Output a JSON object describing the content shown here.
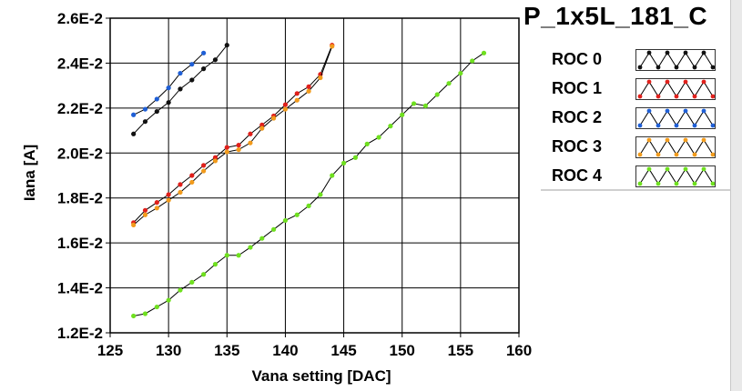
{
  "chart_data": {
    "type": "line",
    "title": "P_1x5L_181_C",
    "xlabel": "Vana setting [DAC]",
    "ylabel": "Iana [A]",
    "xlim": [
      125,
      160
    ],
    "ylim": [
      0.012,
      0.026
    ],
    "xticks": [
      125,
      130,
      135,
      140,
      145,
      150,
      155,
      160
    ],
    "yticks": [
      0.012,
      0.014,
      0.016,
      0.018,
      0.02,
      0.022,
      0.024,
      0.026
    ],
    "ytick_labels": [
      "1.2E-2",
      "1.4E-2",
      "1.6E-2",
      "1.8E-2",
      "2.0E-2",
      "2.2E-2",
      "2.4E-2",
      "2.6E-2"
    ],
    "grid": true,
    "legend_position": "right",
    "series": [
      {
        "name": "ROC 0",
        "color": "#111111",
        "x": [
          127,
          128,
          129,
          130,
          131,
          132,
          133,
          134,
          135
        ],
        "y": [
          0.02085,
          0.0214,
          0.02185,
          0.02225,
          0.02285,
          0.02325,
          0.02375,
          0.02415,
          0.0248
        ]
      },
      {
        "name": "ROC 1",
        "color": "#e0201b",
        "x": [
          127,
          128,
          129,
          130,
          131,
          132,
          133,
          134,
          135,
          136,
          137,
          138,
          139,
          140,
          141,
          142,
          143,
          144
        ],
        "y": [
          0.0169,
          0.01745,
          0.0178,
          0.01815,
          0.0186,
          0.019,
          0.01945,
          0.0198,
          0.02025,
          0.02035,
          0.02085,
          0.02125,
          0.02165,
          0.02215,
          0.02265,
          0.02295,
          0.0235,
          0.0248
        ]
      },
      {
        "name": "ROC 2",
        "color": "#1f5fd6",
        "x": [
          127,
          128,
          129,
          130,
          131,
          132,
          133
        ],
        "y": [
          0.0217,
          0.02195,
          0.0224,
          0.0229,
          0.02355,
          0.02395,
          0.02445
        ]
      },
      {
        "name": "ROC 3",
        "color": "#f29b1c",
        "x": [
          127,
          128,
          129,
          130,
          131,
          132,
          133,
          134,
          135,
          136,
          137,
          138,
          139,
          140,
          141,
          142,
          143,
          144
        ],
        "y": [
          0.0168,
          0.01725,
          0.01755,
          0.0179,
          0.01825,
          0.0187,
          0.0192,
          0.01965,
          0.02005,
          0.02015,
          0.02045,
          0.0211,
          0.02155,
          0.02195,
          0.02235,
          0.02275,
          0.02335,
          0.02475
        ]
      },
      {
        "name": "ROC 4",
        "color": "#6fe01f",
        "x": [
          127,
          128,
          129,
          130,
          131,
          132,
          133,
          134,
          135,
          136,
          137,
          138,
          139,
          140,
          141,
          142,
          143,
          144,
          145,
          146,
          147,
          148,
          149,
          150,
          151,
          152,
          153,
          154,
          155,
          156,
          157
        ],
        "y": [
          0.01275,
          0.01285,
          0.01315,
          0.01345,
          0.0139,
          0.01425,
          0.0146,
          0.01505,
          0.01545,
          0.01545,
          0.0158,
          0.0162,
          0.0166,
          0.017,
          0.01725,
          0.01765,
          0.01815,
          0.019,
          0.01955,
          0.0198,
          0.0204,
          0.0207,
          0.0212,
          0.0217,
          0.0222,
          0.0221,
          0.0226,
          0.0231,
          0.02355,
          0.0241,
          0.02445
        ]
      }
    ]
  }
}
